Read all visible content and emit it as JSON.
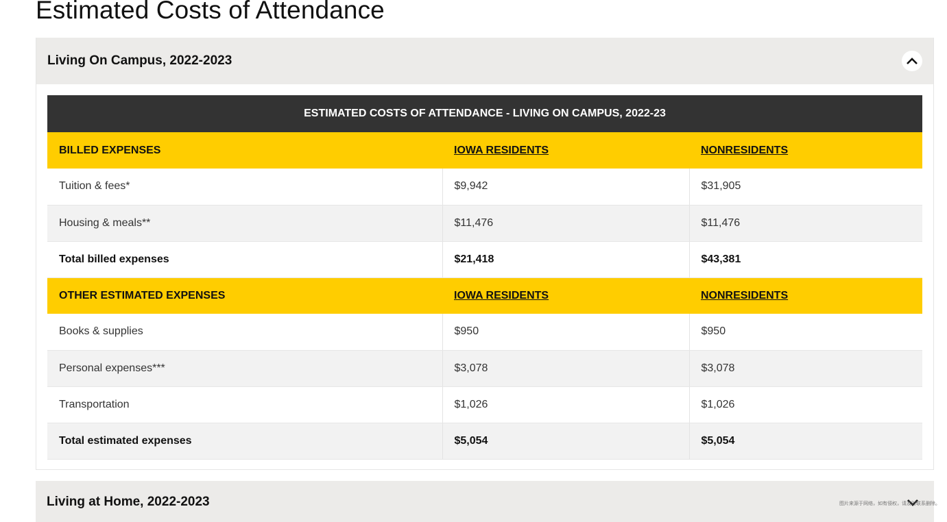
{
  "page_title": "Estimated Costs of Attendance",
  "accordions": [
    {
      "title": "Living On Campus, 2022-2023",
      "expanded": true,
      "table": {
        "caption": "ESTIMATED COSTS OF ATTENDANCE - LIVING ON CAMPUS, 2022-23",
        "sections": [
          {
            "headers": [
              "BILLED EXPENSES",
              "IOWA RESIDENTS",
              "NONRESIDENTS"
            ],
            "rows": [
              [
                "Tuition & fees*",
                "$9,942",
                "$31,905"
              ],
              [
                "Housing & meals**",
                "$11,476",
                "$11,476"
              ]
            ],
            "total": [
              "Total billed expenses",
              "$21,418",
              "$43,381"
            ]
          },
          {
            "headers": [
              "OTHER ESTIMATED EXPENSES",
              "IOWA RESIDENTS",
              "NONRESIDENTS"
            ],
            "rows": [
              [
                "Books & supplies",
                "$950",
                "$950"
              ],
              [
                "Personal expenses***",
                "$3,078",
                "$3,078"
              ],
              [
                "Transportation",
                "$1,026",
                "$1,026"
              ]
            ],
            "total": [
              "Total estimated expenses",
              "$5,054",
              "$5,054"
            ]
          }
        ]
      },
      "toggle_icon": "chevron-up-icon"
    },
    {
      "title": "Living at Home, 2022-2023",
      "expanded": false,
      "toggle_icon": "chevron-down-icon"
    }
  ],
  "watermark": "图片来源于网络，如有侵权，请及时联系删除。",
  "colors": {
    "header_bg": "#333333",
    "section_bg": "#ffcd00",
    "accordion_bg": "#ecebe9",
    "alt_row_bg": "#f2f2f2"
  }
}
